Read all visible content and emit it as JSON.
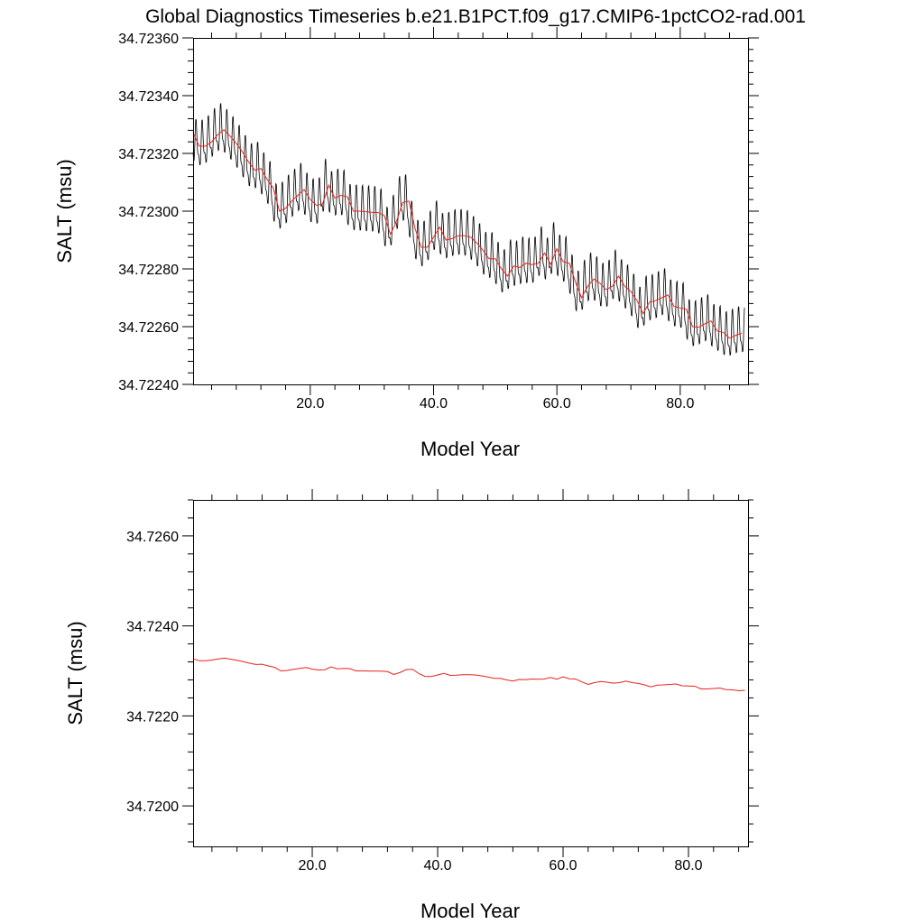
{
  "title": "Global Diagnostics Timeseries b.e21.B1PCT.f09_g17.CMIP6-1pctCO2-rad.001",
  "colors": {
    "monthly": "#000000",
    "annual": "#e8231c",
    "axes": "#000000"
  },
  "chart_data": [
    {
      "type": "line",
      "xlabel": "Model Year",
      "ylabel": "SALT (msu)",
      "xlim": [
        1,
        91
      ],
      "ylim": [
        34.7224,
        34.7236
      ],
      "x_ticks": [
        20,
        40,
        60,
        80
      ],
      "x_tick_labels": [
        "20.0",
        "40.0",
        "60.0",
        "80.0"
      ],
      "y_ticks": [
        34.7224,
        34.7226,
        34.7228,
        34.723,
        34.7232,
        34.7234,
        34.7236
      ],
      "y_tick_labels": [
        "34.72240",
        "34.72260",
        "34.72280",
        "34.72300",
        "34.72320",
        "34.72340",
        "34.72360"
      ],
      "series": [
        {
          "description": "monthly values, modeled as an annual cycle of given amplitude around the annual mean",
          "color": "#000000",
          "cycle_amplitude": 0.00011
        },
        {
          "x": [
            1,
            2,
            3,
            4,
            5,
            6,
            7,
            8,
            9,
            10,
            11,
            12,
            13,
            14,
            15,
            16,
            17,
            18,
            19,
            20,
            21,
            22,
            23,
            24,
            25,
            26,
            27,
            28,
            29,
            30,
            31,
            32,
            33,
            34,
            35,
            36,
            37,
            38,
            39,
            40,
            41,
            42,
            43,
            44,
            45,
            46,
            47,
            48,
            49,
            50,
            51,
            52,
            53,
            54,
            55,
            56,
            57,
            58,
            59,
            60,
            61,
            62,
            63,
            64,
            65,
            66,
            67,
            68,
            69,
            70,
            71,
            72,
            73,
            74,
            75,
            76,
            77,
            78,
            79,
            80,
            81,
            82,
            83,
            84,
            85,
            86,
            87,
            88,
            89,
            90
          ],
          "y": [
            34.72327,
            34.723225,
            34.723225,
            34.72324,
            34.723265,
            34.723282,
            34.72326,
            34.723235,
            34.723205,
            34.72317,
            34.723142,
            34.723148,
            34.72311,
            34.72308,
            34.723,
            34.72301,
            34.723035,
            34.723055,
            34.723075,
            34.72304,
            34.72302,
            34.723025,
            34.72309,
            34.723045,
            34.723055,
            34.72305,
            34.723,
            34.723,
            34.722998,
            34.722996,
            34.722995,
            34.722985,
            34.72292,
            34.722965,
            34.72303,
            34.723035,
            34.72294,
            34.722875,
            34.722875,
            34.72291,
            34.722945,
            34.7229,
            34.722905,
            34.722915,
            34.722915,
            34.72291,
            34.72289,
            34.722865,
            34.722835,
            34.722835,
            34.7228,
            34.722775,
            34.72281,
            34.722805,
            34.72282,
            34.722815,
            34.72282,
            34.722855,
            34.722815,
            34.72287,
            34.722825,
            34.72282,
            34.722755,
            34.7227,
            34.72274,
            34.722765,
            34.72275,
            34.722728,
            34.72274,
            34.722775,
            34.72274,
            34.722722,
            34.72269,
            34.722645,
            34.722685,
            34.72269,
            34.7227,
            34.72271,
            34.72267,
            34.722665,
            34.72266,
            34.7226,
            34.722598,
            34.72261,
            34.72262,
            34.722585,
            34.72258,
            34.72256,
            34.72257,
            34.722578
          ]
        }
      ]
    },
    {
      "type": "line",
      "xlabel": "Model Year",
      "ylabel": "SALT (msu)",
      "xlim": [
        1,
        89.5
      ],
      "ylim": [
        34.7191,
        34.7268
      ],
      "x_ticks": [
        20,
        40,
        60,
        80
      ],
      "x_tick_labels": [
        "20.0",
        "40.0",
        "60.0",
        "80.0"
      ],
      "y_ticks": [
        34.72,
        34.722,
        34.724,
        34.726
      ],
      "y_tick_labels": [
        "34.7200",
        "34.7220",
        "34.7240",
        "34.7260"
      ],
      "series": [
        {
          "color": "#e8231c",
          "x_ref": "annual",
          "y_ref": "annual"
        }
      ]
    }
  ]
}
